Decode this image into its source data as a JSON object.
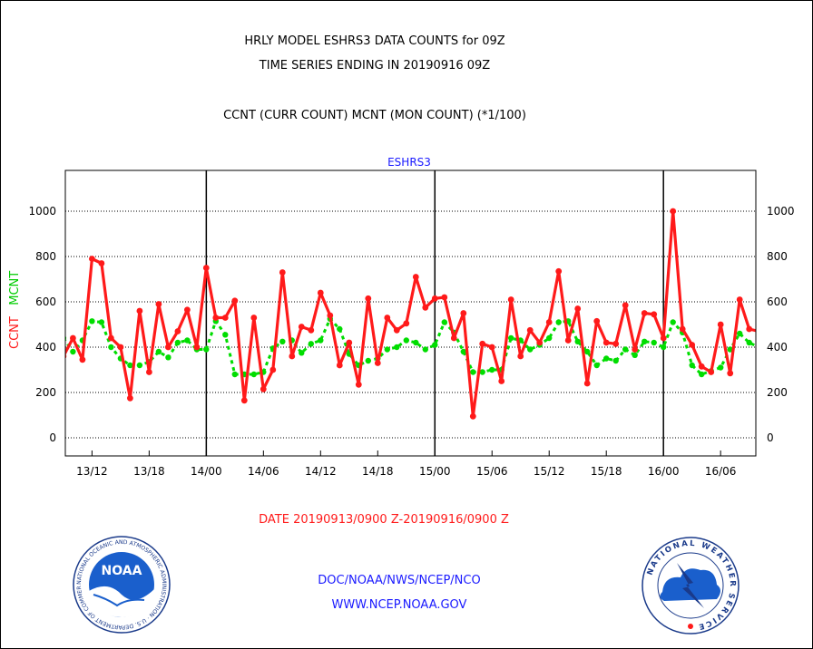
{
  "header": {
    "title_line1": "HRLY MODEL ESHRS3 DATA COUNTS for 09Z",
    "title_line2": "TIME SERIES ENDING IN 20190916 09Z",
    "title_line3": "CCNT (CURR COUNT) MCNT (MON COUNT) (*1/100)"
  },
  "footer": {
    "date_range": "DATE 20190913/0900 Z-20190916/0900 Z",
    "doc_line": "DOC/NOAA/NWS/NCEP/NCO",
    "www_line": "WWW.NCEP.NOAA.GOV"
  },
  "logos": {
    "noaa_text": "NOAA",
    "noaa_ring_text": "NATIONAL OCEANIC AND ATMOSPHERIC ADMINISTRATION · U.S. DEPARTMENT OF COMMERCE ·",
    "nws_ring_text": "NATIONAL WEATHER SERVICE"
  },
  "colors": {
    "ccnt": "#ff1a1a",
    "mcnt": "#00dd00",
    "title_blue": "#1a1aff",
    "date_red": "#ff1a1a"
  },
  "chart_data": {
    "type": "line",
    "plot_label": "ESHRS3",
    "ylabel_ccnt": "CCNT",
    "ylabel_mcnt": "MCNT",
    "ylim": [
      -80,
      1180
    ],
    "yticks": [
      0,
      200,
      400,
      600,
      800,
      1000
    ],
    "hour_range": [
      9.2,
      81.7
    ],
    "day_boundaries": [
      24,
      48,
      72
    ],
    "xticks": [
      {
        "hour": 12,
        "label": "13/12"
      },
      {
        "hour": 18,
        "label": "13/18"
      },
      {
        "hour": 24,
        "label": "14/00"
      },
      {
        "hour": 30,
        "label": "14/06"
      },
      {
        "hour": 36,
        "label": "14/12"
      },
      {
        "hour": 42,
        "label": "14/18"
      },
      {
        "hour": 48,
        "label": "15/00"
      },
      {
        "hour": 54,
        "label": "15/06"
      },
      {
        "hour": 60,
        "label": "15/12"
      },
      {
        "hour": 66,
        "label": "15/18"
      },
      {
        "hour": 72,
        "label": "16/00"
      },
      {
        "hour": 78,
        "label": "16/06"
      }
    ],
    "series": [
      {
        "name": "CCNT",
        "x": [
          9,
          10,
          11,
          12,
          13,
          14,
          15,
          16,
          17,
          18,
          19,
          20,
          21,
          22,
          23,
          24,
          25,
          26,
          27,
          28,
          29,
          30,
          31,
          32,
          33,
          34,
          35,
          36,
          37,
          38,
          39,
          40,
          41,
          42,
          43,
          44,
          45,
          46,
          47,
          48,
          49,
          50,
          51,
          52,
          53,
          54,
          55,
          56,
          57,
          58,
          59,
          60,
          61,
          62,
          63,
          64,
          65,
          66,
          67,
          68,
          69,
          70,
          71,
          72,
          73,
          74,
          75,
          76,
          77,
          78,
          79,
          80,
          81,
          82
        ],
        "values": [
          360,
          440,
          345,
          790,
          770,
          440,
          400,
          175,
          560,
          290,
          590,
          400,
          470,
          565,
          400,
          750,
          530,
          530,
          605,
          165,
          530,
          215,
          300,
          730,
          360,
          490,
          475,
          640,
          540,
          320,
          420,
          235,
          615,
          330,
          530,
          475,
          505,
          710,
          575,
          615,
          620,
          440,
          550,
          95,
          415,
          400,
          250,
          610,
          360,
          475,
          420,
          510,
          735,
          430,
          570,
          240,
          515,
          420,
          415,
          585,
          390,
          550,
          545,
          440,
          1000,
          480,
          410,
          315,
          290,
          500,
          285,
          610,
          480,
          470
        ]
      },
      {
        "name": "MCNT",
        "x": [
          9,
          10,
          11,
          12,
          13,
          14,
          15,
          16,
          17,
          18,
          19,
          20,
          21,
          22,
          23,
          24,
          25,
          26,
          27,
          28,
          29,
          30,
          31,
          32,
          33,
          34,
          35,
          36,
          37,
          38,
          39,
          40,
          41,
          42,
          43,
          44,
          45,
          46,
          47,
          48,
          49,
          50,
          51,
          52,
          53,
          54,
          55,
          56,
          57,
          58,
          59,
          60,
          61,
          62,
          63,
          64,
          65,
          66,
          67,
          68,
          69,
          70,
          71,
          72,
          73,
          74,
          75,
          76,
          77,
          78,
          79,
          80,
          81,
          82
        ],
        "values": [
          440,
          380,
          430,
          515,
          510,
          400,
          350,
          320,
          320,
          335,
          380,
          355,
          420,
          430,
          390,
          390,
          515,
          455,
          280,
          280,
          280,
          290,
          395,
          425,
          430,
          375,
          415,
          430,
          525,
          480,
          370,
          320,
          340,
          350,
          390,
          400,
          430,
          420,
          390,
          410,
          510,
          465,
          380,
          290,
          290,
          300,
          300,
          440,
          430,
          390,
          410,
          440,
          510,
          515,
          425,
          380,
          320,
          350,
          340,
          390,
          365,
          425,
          420,
          400,
          510,
          465,
          320,
          280,
          295,
          310,
          390,
          460,
          420,
          400
        ]
      }
    ]
  }
}
